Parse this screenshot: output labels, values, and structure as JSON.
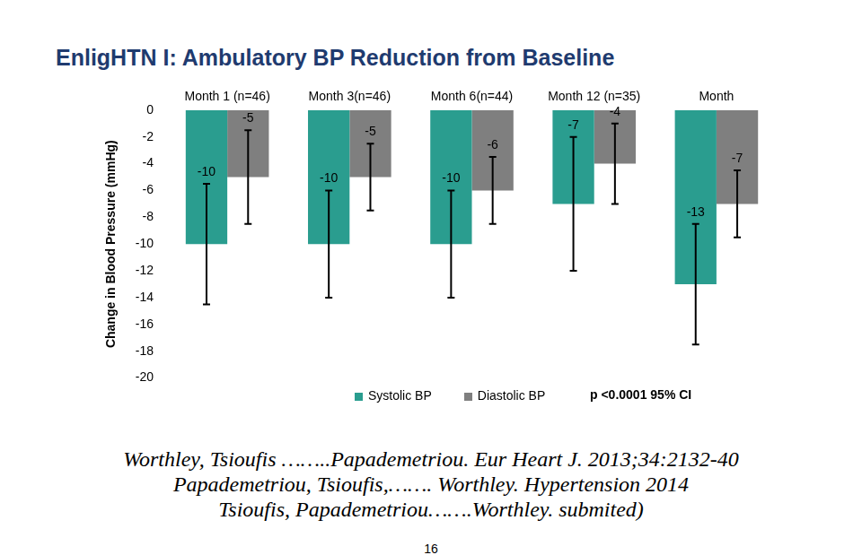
{
  "chart_data": {
    "type": "bar",
    "title": "EnligHTN I: Ambulatory BP Reduction from Baseline",
    "y_label": "Change in Blood Pressure (mmHg)",
    "categories": [
      "Month 1 (n=46)",
      "Month 3(n=46)",
      "Month 6(n=44)",
      "Month 12 (n=35)",
      "Month"
    ],
    "series": [
      {
        "name": "Systolic BP",
        "color": "#2A9D8F",
        "values": [
          -10,
          -10,
          -10,
          -7,
          -13
        ],
        "ci": [
          [
            -14.5,
            -5.5
          ],
          [
            -14,
            -6
          ],
          [
            -14,
            -6
          ],
          [
            -12,
            -2
          ],
          [
            -17.5,
            -8.5
          ]
        ]
      },
      {
        "name": "Diastolic BP",
        "color": "#7F7F7F",
        "values": [
          -5,
          -5,
          -6,
          -4,
          -7
        ],
        "ci": [
          [
            -8.5,
            -1.5
          ],
          [
            -7.5,
            -2.5
          ],
          [
            -8.5,
            -3.5
          ],
          [
            -7,
            -1
          ],
          [
            -9.5,
            -4.5
          ]
        ]
      }
    ],
    "ylim": [
      -20,
      0
    ],
    "yticks": [
      0,
      -2,
      -4,
      -6,
      -8,
      -10,
      -12,
      -14,
      -16,
      -18,
      -20
    ],
    "grid": false,
    "legend": "bottom",
    "data_labels": true,
    "annotations": [
      "p <0.0001 95% CI"
    ]
  },
  "references": [
    "Worthley, Tsioufis ……..Papademetriou. Eur Heart J. 2013;34:2132-40",
    "Papademetriou, Tsioufis,……. Worthley. Hypertension 2014",
    "Tsioufis, Papademetriou…….Worthley. submited)"
  ],
  "page_number": 16
}
